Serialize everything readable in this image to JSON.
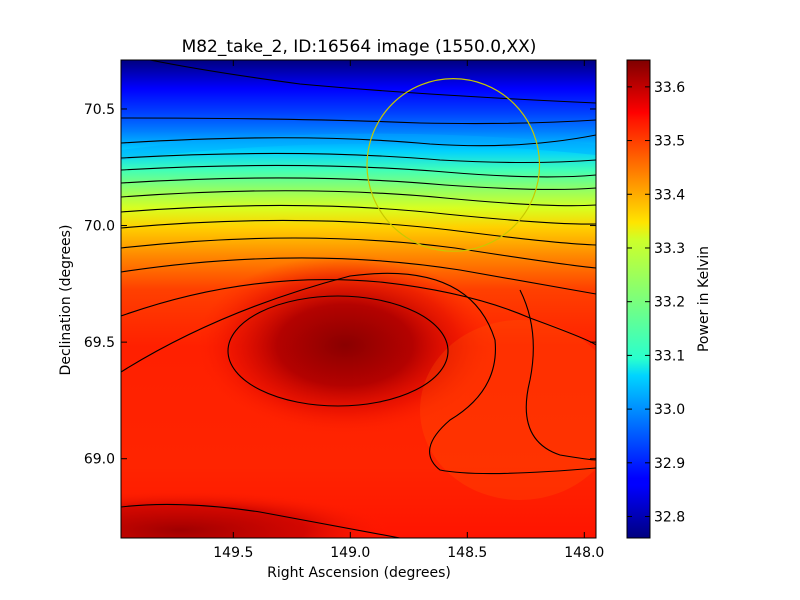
{
  "chart_data": {
    "type": "heatmap",
    "title": "M82_take_2, ID:16564 image (1550.0,XX)",
    "xlabel": "Right Ascension (degrees)",
    "ylabel": "Declination (degrees)",
    "xlim": [
      149.98,
      147.95
    ],
    "ylim": [
      68.66,
      70.71
    ],
    "x_ticks": [
      149.5,
      149.0,
      148.5,
      148.0
    ],
    "x_tick_labels": [
      "149.5",
      "149.0",
      "148.5",
      "148.0"
    ],
    "y_ticks": [
      69.0,
      69.5,
      70.0,
      70.5
    ],
    "y_tick_labels": [
      "69.0",
      "69.5",
      "70.0",
      "70.5"
    ],
    "colorbar": {
      "label": "Power in Kelvin",
      "range": [
        32.76,
        33.65
      ],
      "colormap": "jet",
      "ticks": [
        32.8,
        32.9,
        33.0,
        33.1,
        33.2,
        33.3,
        33.4,
        33.5,
        33.6
      ],
      "tick_labels": [
        "32.8",
        "32.9",
        "33.0",
        "33.1",
        "33.2",
        "33.3",
        "33.4",
        "33.5",
        "33.6"
      ]
    },
    "beam_circle": {
      "center_ra": 148.56,
      "center_dec": 70.26,
      "radius_deg": 0.37,
      "color": "#c8c800"
    },
    "contour_color": "#000000",
    "grid": false
  }
}
